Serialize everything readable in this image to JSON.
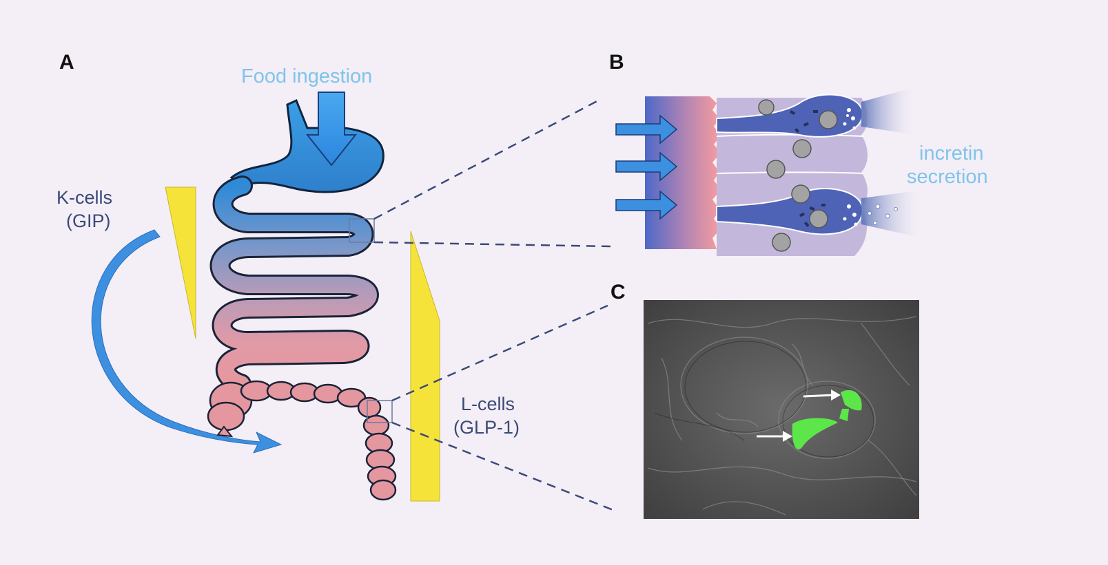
{
  "panels": {
    "a": "A",
    "b": "B",
    "c": "C"
  },
  "labels": {
    "food_ingestion": "Food ingestion",
    "k_cells_line1": "K-cells",
    "k_cells_line2": "(GIP)",
    "l_cells_line1": "L-cells",
    "l_cells_line2": "(GLP-1)",
    "incretin_line1": "incretin",
    "incretin_line2": "secretion"
  },
  "colors": {
    "background": "#f4eef6",
    "stomach_blue": "#3f8fd6",
    "intestine_pink": "#e59ba3",
    "arrow_blue": "#3d8fe0",
    "gradient_yellow": "#f5e33a",
    "label_blue": "#7fc4ea",
    "label_navy": "#3a4a78",
    "dashed_line": "#3a4a78",
    "fluorescent_green": "#5ce64a"
  }
}
